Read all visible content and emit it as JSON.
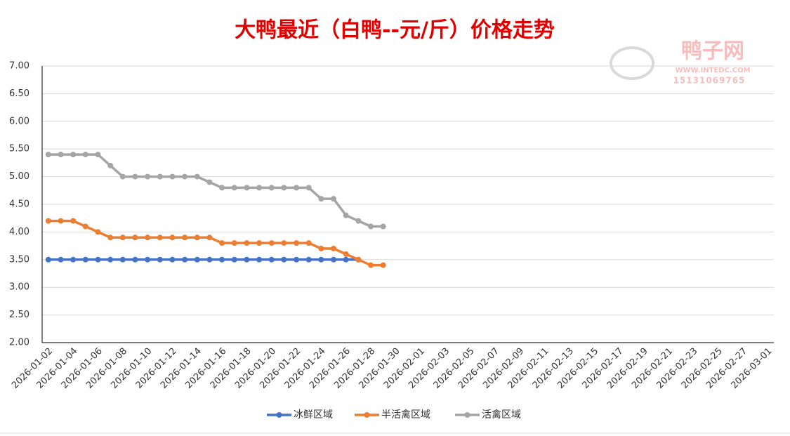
{
  "chart_data": {
    "type": "line",
    "title": "大鸭最近（白鸭--元/斤）价格走势",
    "watermark": [
      "鸭子网",
      "WWW.INTEDC.COM",
      "15131069765"
    ],
    "categories": [
      "2026-01-02",
      null,
      "2026-01-04",
      null,
      "2026-01-06",
      null,
      "2026-01-08",
      null,
      "2026-01-10",
      null,
      "2026-01-12",
      null,
      "2026-01-14",
      null,
      "2026-01-16",
      null,
      "2026-01-18",
      null,
      "2026-01-20",
      null,
      "2026-01-22",
      null,
      "2026-01-24",
      null,
      "2026-01-26",
      null,
      "2026-01-28",
      null,
      "2026-01-30",
      null,
      "2026-02-01",
      null,
      "2026-02-03",
      null,
      "2026-02-05",
      null,
      "2026-02-07",
      null,
      "2026-02-09",
      null,
      "2026-02-11",
      null,
      "2026-02-13",
      null,
      "2026-02-15",
      null,
      "2026-02-17",
      null,
      "2026-02-19",
      null,
      "2026-02-21",
      null,
      "2026-02-23",
      null,
      "2026-02-25",
      null,
      "2026-02-27",
      null,
      "2026-03-01"
    ],
    "series": [
      {
        "name": "冰鲜区域",
        "color": "#4472c4",
        "values": [
          3.5,
          3.5,
          3.5,
          3.5,
          3.5,
          3.5,
          3.5,
          3.5,
          3.5,
          3.5,
          3.5,
          3.5,
          3.5,
          3.5,
          3.5,
          3.5,
          3.5,
          3.5,
          3.5,
          3.5,
          3.5,
          3.5,
          3.5,
          3.5,
          3.5,
          3.5,
          null,
          null,
          null,
          null,
          null,
          null,
          null,
          null,
          null,
          null,
          null,
          null,
          null,
          null,
          null,
          null,
          null,
          null,
          null,
          null,
          null,
          null,
          null,
          null,
          null,
          null,
          null,
          null,
          null,
          null,
          null,
          null,
          null
        ]
      },
      {
        "name": "半活禽区域",
        "color": "#ed7d31",
        "values": [
          4.2,
          4.2,
          4.2,
          4.1,
          4.0,
          3.9,
          3.9,
          3.9,
          3.9,
          3.9,
          3.9,
          3.9,
          3.9,
          3.9,
          3.8,
          3.8,
          3.8,
          3.8,
          3.8,
          3.8,
          3.8,
          3.8,
          3.7,
          3.7,
          3.6,
          3.5,
          3.4,
          3.4,
          null,
          null,
          null,
          null,
          null,
          null,
          null,
          null,
          null,
          null,
          null,
          null,
          null,
          null,
          null,
          null,
          null,
          null,
          null,
          null,
          null,
          null,
          null,
          null,
          null,
          null,
          null,
          null,
          null,
          null,
          null
        ]
      },
      {
        "name": "活禽区域",
        "color": "#a5a5a5",
        "values": [
          5.4,
          5.4,
          5.4,
          5.4,
          5.4,
          5.2,
          5.0,
          5.0,
          5.0,
          5.0,
          5.0,
          5.0,
          5.0,
          4.9,
          4.8,
          4.8,
          4.8,
          4.8,
          4.8,
          4.8,
          4.8,
          4.8,
          4.6,
          4.6,
          4.3,
          4.2,
          4.1,
          4.1,
          null,
          null,
          null,
          null,
          null,
          null,
          null,
          null,
          null,
          null,
          null,
          null,
          null,
          null,
          null,
          null,
          null,
          null,
          null,
          null,
          null,
          null,
          null,
          null,
          null,
          null,
          null,
          null,
          null,
          null,
          null
        ]
      }
    ],
    "ylim": [
      2,
      7
    ],
    "yticks": [
      {
        "value": 2,
        "label": "2.00"
      },
      {
        "value": 2.5,
        "label": "2.50"
      },
      {
        "value": 3,
        "label": "3.00"
      },
      {
        "value": 3.5,
        "label": "3.50"
      },
      {
        "value": 4,
        "label": "4.00"
      },
      {
        "value": 4.5,
        "label": "4.50"
      },
      {
        "value": 5,
        "label": "5.00"
      },
      {
        "value": 5.5,
        "label": "5.50"
      },
      {
        "value": 6,
        "label": "6.00"
      },
      {
        "value": 6.5,
        "label": "6.50"
      },
      {
        "value": 7,
        "label": "7.00"
      }
    ],
    "grid": true,
    "legend": "bottom"
  }
}
